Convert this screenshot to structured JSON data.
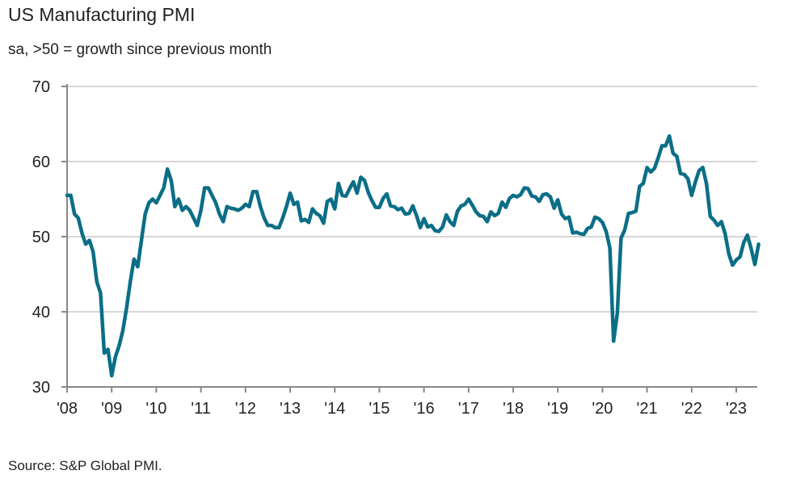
{
  "chart_data": {
    "type": "line",
    "title": "US Manufacturing PMI",
    "subtitle": "sa, >50 = growth since previous month",
    "source": "Source: S&P Global PMI.",
    "xlabel": "",
    "ylabel": "",
    "ylim": [
      30,
      70
    ],
    "yticks": [
      "70",
      "60",
      "50",
      "40",
      "30"
    ],
    "ytick_values": [
      70,
      60,
      50,
      40,
      30
    ],
    "xticks": [
      "'08",
      "'09",
      "'10",
      "'11",
      "'12",
      "'13",
      "'14",
      "'15",
      "'16",
      "'17",
      "'18",
      "'19",
      "'20",
      "'21",
      "'22",
      "'23"
    ],
    "x_start": "2008-01",
    "x_end": "2023-07",
    "frequency": "monthly",
    "grid": true,
    "legend": "none",
    "line_color": "#0b6e87",
    "series": [
      {
        "values": [
          55.5,
          55.5,
          53,
          52.5,
          50.5,
          49,
          49.5,
          48,
          44,
          42.5,
          34.5,
          35,
          31.5,
          34,
          35.5,
          37.5,
          40.5,
          44,
          47,
          46,
          49.5,
          53,
          54.5,
          55,
          54.5,
          55.5,
          56.5,
          59,
          57.5,
          54,
          55,
          53.5,
          54,
          53.5,
          52.5,
          51.5,
          53.5,
          56.5,
          56.5,
          55.5,
          54.5,
          53,
          52,
          54,
          53.8,
          53.7,
          53.5,
          53.8,
          54.3,
          54,
          56,
          56,
          54,
          52.5,
          51.5,
          51.5,
          51.2,
          51.2,
          52.5,
          54,
          55.8,
          54.3,
          54.6,
          52.1,
          52.3,
          51.9,
          53.7,
          53.1,
          52.8,
          51.8,
          54.7,
          55,
          53.7,
          57.1,
          55.5,
          55.4,
          56.4,
          57.3,
          55.8,
          57.9,
          57.5,
          55.9,
          54.8,
          53.9,
          53.9,
          55.1,
          55.7,
          54.1,
          54,
          53.6,
          53.8,
          53,
          53.1,
          54.1,
          52.8,
          51.2,
          52.4,
          51.3,
          51.5,
          50.8,
          50.7,
          51.3,
          52.9,
          52,
          51.5,
          53.4,
          54.1,
          54.3,
          55,
          54.2,
          53.3,
          52.8,
          52.7,
          52,
          53.3,
          52.8,
          53.1,
          54.6,
          53.9,
          55.1,
          55.5,
          55.3,
          55.6,
          56.5,
          56.4,
          55.4,
          55.3,
          54.7,
          55.6,
          55.7,
          55.3,
          53.8,
          54.9,
          53,
          52.4,
          52.6,
          50.5,
          50.6,
          50.4,
          50.3,
          51.1,
          51.3,
          52.6,
          52.4,
          51.9,
          50.7,
          48.5,
          36.1,
          39.8,
          49.8,
          50.9,
          53.1,
          53.2,
          53.4,
          56.7,
          57.1,
          59.2,
          58.6,
          59.1,
          60.5,
          62.1,
          62.1,
          63.4,
          61.1,
          60.7,
          58.4,
          58.3,
          57.7,
          55.5,
          57.3,
          58.8,
          59.2,
          57,
          52.7,
          52.2,
          51.5,
          52,
          50.4,
          47.7,
          46.2,
          46.9,
          47.3,
          49.2,
          50.2,
          48.4,
          46.3,
          49.0
        ]
      }
    ]
  }
}
